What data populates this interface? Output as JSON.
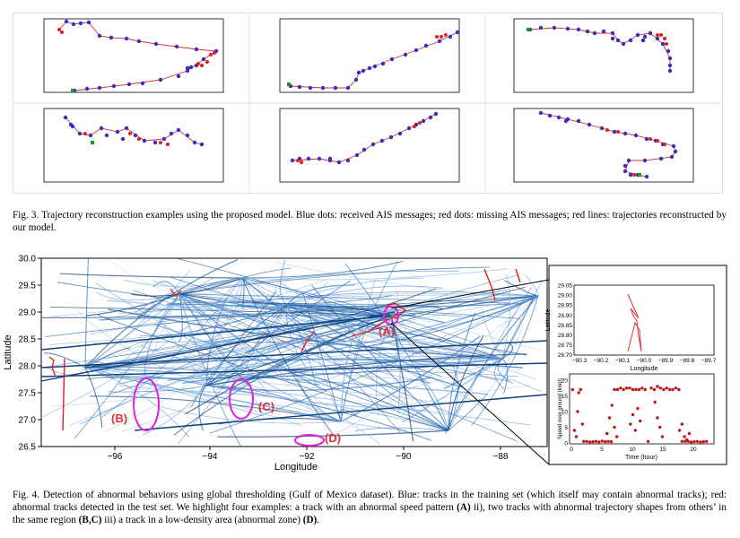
{
  "fig3": {
    "caption": "Fig. 3.  Trajectory reconstruction examples using the proposed model. Blue dots: received AIS messages; red dots: missing AIS messages; red lines: trajectories reconstructed by our model.",
    "panels": [
      {
        "blue": [
          [
            25,
            3
          ],
          [
            33,
            6
          ],
          [
            41,
            5
          ],
          [
            50,
            4
          ],
          [
            62,
            19
          ],
          [
            75,
            21
          ],
          [
            92,
            22
          ],
          [
            106,
            25
          ],
          [
            125,
            28
          ],
          [
            148,
            31
          ],
          [
            170,
            34
          ],
          [
            192,
            36
          ],
          [
            178,
            45
          ],
          [
            170,
            52
          ],
          [
            160,
            58
          ],
          [
            150,
            64
          ],
          [
            130,
            68
          ],
          [
            110,
            72
          ],
          [
            95,
            73
          ],
          [
            78,
            75
          ],
          [
            62,
            77
          ],
          [
            48,
            78
          ],
          [
            34,
            80
          ],
          [
            160,
            55
          ],
          [
            164,
            54
          ]
        ],
        "red": [
          [
            17,
            12
          ],
          [
            20,
            15
          ],
          [
            186,
            40
          ],
          [
            190,
            38
          ],
          [
            182,
            48
          ],
          [
            176,
            52
          ],
          [
            172,
            50
          ]
        ],
        "redline": [
          [
            17,
            12
          ],
          [
            25,
            3
          ],
          [
            33,
            6
          ],
          [
            41,
            5
          ],
          [
            50,
            4
          ],
          [
            62,
            19
          ],
          [
            75,
            21
          ],
          [
            92,
            22
          ],
          [
            106,
            25
          ],
          [
            125,
            28
          ],
          [
            148,
            31
          ],
          [
            170,
            34
          ],
          [
            192,
            36
          ],
          [
            178,
            45
          ],
          [
            160,
            58
          ],
          [
            130,
            68
          ],
          [
            95,
            73
          ],
          [
            62,
            77
          ],
          [
            34,
            80
          ]
        ],
        "green": [
          [
            32,
            80
          ]
        ]
      },
      {
        "blue": [
          [
            12,
            75
          ],
          [
            22,
            76
          ],
          [
            34,
            77
          ],
          [
            48,
            77
          ],
          [
            62,
            77
          ],
          [
            76,
            77
          ],
          [
            85,
            68
          ],
          [
            88,
            60
          ],
          [
            100,
            55
          ],
          [
            115,
            50
          ],
          [
            125,
            45
          ],
          [
            140,
            40
          ],
          [
            152,
            35
          ],
          [
            163,
            30
          ],
          [
            178,
            25
          ],
          [
            190,
            20
          ],
          [
            198,
            15
          ],
          [
            93,
            58
          ],
          [
            106,
            53
          ]
        ],
        "red": [
          [
            175,
            20
          ],
          [
            180,
            20
          ],
          [
            185,
            18
          ]
        ],
        "redline": [
          [
            12,
            75
          ],
          [
            48,
            77
          ],
          [
            76,
            77
          ],
          [
            85,
            68
          ],
          [
            88,
            60
          ],
          [
            100,
            55
          ],
          [
            125,
            45
          ],
          [
            152,
            35
          ],
          [
            178,
            25
          ],
          [
            198,
            15
          ]
        ],
        "green": [
          [
            10,
            73
          ]
        ]
      },
      {
        "blue": [
          [
            18,
            12
          ],
          [
            30,
            10
          ],
          [
            45,
            10
          ],
          [
            60,
            11
          ],
          [
            72,
            12
          ],
          [
            82,
            14
          ],
          [
            90,
            16
          ],
          [
            100,
            14
          ],
          [
            110,
            16
          ],
          [
            116,
            24
          ],
          [
            122,
            28
          ],
          [
            130,
            24
          ],
          [
            138,
            18
          ],
          [
            146,
            20
          ],
          [
            152,
            16
          ],
          [
            160,
            22
          ],
          [
            166,
            28
          ],
          [
            172,
            36
          ],
          [
            174,
            44
          ],
          [
            174,
            52
          ],
          [
            174,
            58
          ],
          [
            110,
            22
          ],
          [
            144,
            24
          ]
        ],
        "red": [
          [
            160,
            18
          ],
          [
            164,
            18
          ],
          [
            168,
            22
          ],
          [
            170,
            28
          ]
        ],
        "redline": [
          [
            18,
            12
          ],
          [
            45,
            10
          ],
          [
            72,
            12
          ],
          [
            90,
            16
          ],
          [
            110,
            16
          ],
          [
            116,
            24
          ],
          [
            122,
            28
          ],
          [
            138,
            18
          ],
          [
            152,
            16
          ],
          [
            166,
            28
          ],
          [
            174,
            44
          ],
          [
            174,
            58
          ]
        ],
        "green": [
          [
            16,
            12
          ]
        ]
      },
      {
        "blue": [
          [
            24,
            10
          ],
          [
            32,
            20
          ],
          [
            40,
            28
          ],
          [
            52,
            30
          ],
          [
            64,
            22
          ],
          [
            70,
            30
          ],
          [
            82,
            26
          ],
          [
            92,
            22
          ],
          [
            102,
            30
          ],
          [
            112,
            36
          ],
          [
            124,
            38
          ],
          [
            134,
            34
          ],
          [
            142,
            28
          ],
          [
            150,
            24
          ],
          [
            160,
            30
          ],
          [
            168,
            38
          ],
          [
            176,
            40
          ],
          [
            30,
            18
          ],
          [
            88,
            34
          ]
        ],
        "red": [
          [
            46,
            28
          ],
          [
            96,
            28
          ],
          [
            106,
            34
          ],
          [
            130,
            38
          ],
          [
            138,
            40
          ]
        ],
        "redline": [
          [
            24,
            10
          ],
          [
            40,
            28
          ],
          [
            52,
            30
          ],
          [
            64,
            22
          ],
          [
            82,
            26
          ],
          [
            92,
            22
          ],
          [
            112,
            36
          ],
          [
            134,
            34
          ],
          [
            150,
            24
          ],
          [
            168,
            38
          ],
          [
            176,
            40
          ]
        ],
        "green": [
          [
            54,
            38
          ]
        ]
      },
      {
        "blue": [
          [
            14,
            58
          ],
          [
            22,
            56
          ],
          [
            32,
            56
          ],
          [
            44,
            56
          ],
          [
            56,
            58
          ],
          [
            66,
            60
          ],
          [
            76,
            58
          ],
          [
            86,
            52
          ],
          [
            94,
            46
          ],
          [
            104,
            40
          ],
          [
            114,
            36
          ],
          [
            124,
            32
          ],
          [
            134,
            28
          ],
          [
            144,
            22
          ],
          [
            152,
            18
          ],
          [
            160,
            14
          ],
          [
            168,
            10
          ],
          [
            174,
            6
          ],
          [
            56,
            56
          ]
        ],
        "red": [
          [
            20,
            58
          ],
          [
            24,
            60
          ],
          [
            150,
            20
          ],
          [
            156,
            16
          ]
        ],
        "redline": [
          [
            14,
            58
          ],
          [
            44,
            56
          ],
          [
            66,
            60
          ],
          [
            86,
            52
          ],
          [
            104,
            40
          ],
          [
            124,
            32
          ],
          [
            144,
            22
          ],
          [
            160,
            14
          ],
          [
            174,
            6
          ]
        ],
        "green": []
      },
      {
        "blue": [
          [
            30,
            5
          ],
          [
            40,
            8
          ],
          [
            50,
            10
          ],
          [
            60,
            12
          ],
          [
            72,
            14
          ],
          [
            84,
            18
          ],
          [
            98,
            22
          ],
          [
            112,
            26
          ],
          [
            124,
            28
          ],
          [
            136,
            30
          ],
          [
            148,
            34
          ],
          [
            158,
            36
          ],
          [
            166,
            40
          ],
          [
            178,
            42
          ],
          [
            180,
            48
          ],
          [
            176,
            54
          ],
          [
            164,
            56
          ],
          [
            146,
            58
          ],
          [
            128,
            58
          ],
          [
            124,
            64
          ],
          [
            124,
            70
          ],
          [
            130,
            74
          ],
          [
            138,
            74
          ],
          [
            148,
            76
          ],
          [
            58,
            14
          ]
        ],
        "red": [
          [
            104,
            24
          ],
          [
            116,
            26
          ],
          [
            152,
            34
          ],
          [
            160,
            36
          ],
          [
            168,
            40
          ],
          [
            134,
            74
          ]
        ],
        "redline": [
          [
            30,
            5
          ],
          [
            60,
            12
          ],
          [
            84,
            18
          ],
          [
            112,
            26
          ],
          [
            136,
            30
          ],
          [
            158,
            36
          ],
          [
            178,
            42
          ],
          [
            180,
            48
          ],
          [
            176,
            54
          ],
          [
            146,
            58
          ],
          [
            128,
            58
          ],
          [
            124,
            70
          ],
          [
            138,
            74
          ],
          [
            148,
            76
          ]
        ],
        "green": [
          [
            140,
            74
          ]
        ]
      }
    ]
  },
  "fig4": {
    "caption_parts": [
      "Fig. 4.  Detection of abnormal behaviors using global thresholding (Gulf of Mexico dataset). Blue: tracks in the training set (which itself may contain abnormal tracks); red: abnormal tracks detected in the test set. We highlight four examples: a track with an abnormal speed pattern ",
      "(A)",
      " ii), two tracks with abnormal trajectory shapes from others’ in the same region ",
      "(B,C)",
      " iii) a track in a low-density area (abnormal zone) ",
      "(D)",
      "."
    ],
    "main_map": {
      "xlabel": "Longitude",
      "ylabel": "Latitude",
      "x_ticks": [
        "−96",
        "−94",
        "−92",
        "−90",
        "−88"
      ],
      "y_ticks": [
        "30.0",
        "29.5",
        "29.0",
        "28.5",
        "28.0",
        "27.5",
        "27.0",
        "26.5"
      ],
      "labels": {
        "A": "(A)",
        "B": "(B)",
        "C": "(C)",
        "D": "(D)"
      }
    },
    "inset_track": {
      "ylabel": "Latitude",
      "xlabel": "Longitude",
      "y_ticks": [
        "29.05",
        "29.00",
        "28.95",
        "28.90",
        "28.85",
        "28.80",
        "28.75",
        "28.70"
      ],
      "x_ticks": [
        "−90.3",
        "−90.2",
        "−90.1",
        "−90.0",
        "−89.9",
        "−89.8",
        "−89.7"
      ]
    },
    "inset_speed": {
      "ylabel": "Speed over ground (knot)",
      "xlabel": "Time (hour)",
      "y_ticks": [
        "20",
        "15",
        "10",
        "5",
        "0"
      ],
      "x_ticks": [
        "0",
        "5",
        "10",
        "15",
        "20"
      ]
    },
    "chart_data": {
      "type": "scatter",
      "x": [
        0.2,
        0.5,
        0.8,
        1.2,
        1.5,
        2,
        2.5,
        3,
        3.5,
        4,
        4.5,
        5,
        5.5,
        6,
        6.5,
        7,
        7.5,
        8,
        8.5,
        9,
        9.5,
        10,
        10.5,
        11,
        11.5,
        12,
        12.5,
        13,
        13.5,
        14,
        14.5,
        15,
        15.5,
        16,
        16.5,
        17,
        17.5,
        18,
        18.5,
        19,
        19.5,
        20,
        20.5,
        21,
        21.5,
        22,
        1,
        1.8,
        5.8,
        6.2,
        6.6,
        7,
        7.4,
        9.6,
        10,
        10.4,
        10.8,
        11.2,
        13.6,
        14,
        14.4,
        14.8,
        17.6,
        18,
        18.4,
        18.8,
        19.2
      ],
      "y": [
        17,
        4,
        2,
        16,
        17,
        0.5,
        0.5,
        0.3,
        0.4,
        0.5,
        0.3,
        0.6,
        0.4,
        0.5,
        0.4,
        17,
        17,
        17.5,
        17,
        17.5,
        17.5,
        17,
        17,
        17,
        17.5,
        17,
        0.5,
        17.5,
        17,
        18,
        17.5,
        17,
        17.5,
        17,
        17,
        17.5,
        17,
        0.5,
        0.5,
        0.5,
        0.3,
        0.4,
        0.5,
        0.3,
        0.4,
        0.5,
        10,
        6,
        3,
        8,
        12,
        5,
        2,
        6,
        9,
        4,
        11,
        7,
        13,
        8,
        5,
        2,
        4,
        6,
        2,
        1,
        3
      ]
    }
  }
}
